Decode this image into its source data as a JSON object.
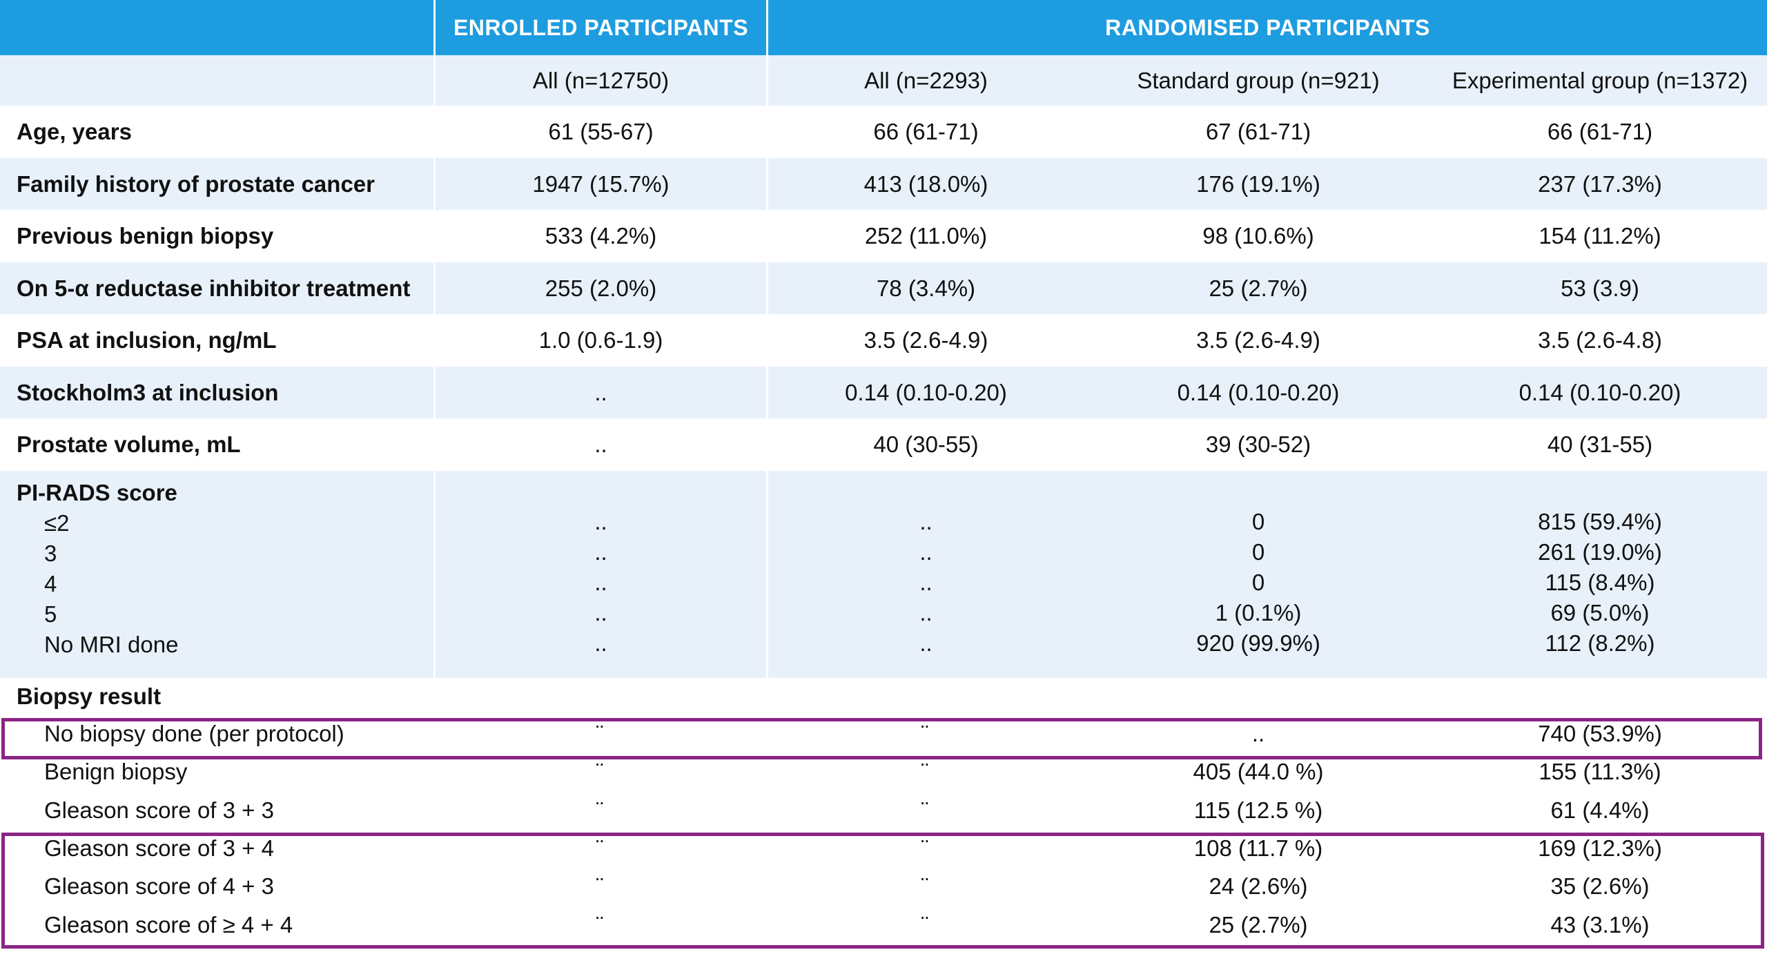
{
  "header": {
    "enrolled": "ENROLLED PARTICIPANTS",
    "randomised": "RANDOMISED PARTICIPANTS"
  },
  "subheader": [
    "",
    "All (n=12750)",
    "All (n=2293)",
    "Standard group (n=921)",
    "Experimental group (n=1372)"
  ],
  "rows": [
    {
      "label": "Age, years",
      "values": [
        "61 (55-67)",
        "66 (61-71)",
        "67 (61-71)",
        "66 (61-71)"
      ]
    },
    {
      "label": "Family history of prostate cancer",
      "values": [
        "1947 (15.7%)",
        "413 (18.0%)",
        "176 (19.1%)",
        "237 (17.3%)"
      ]
    },
    {
      "label": "Previous benign biopsy",
      "values": [
        "533 (4.2%)",
        "252 (11.0%)",
        "98 (10.6%)",
        "154 (11.2%)"
      ]
    },
    {
      "label": "On 5-α reductase inhibitor treatment",
      "values": [
        "255 (2.0%)",
        "78 (3.4%)",
        "25 (2.7%)",
        "53 (3.9)"
      ]
    },
    {
      "label": "PSA at inclusion, ng/mL",
      "values": [
        "1.0 (0.6-1.9)",
        "3.5 (2.6-4.9)",
        "3.5 (2.6-4.9)",
        "3.5 (2.6-4.8)"
      ]
    },
    {
      "label": "Stockholm3 at inclusion",
      "values": [
        "..",
        "0.14 (0.10-0.20)",
        "0.14 (0.10-0.20)",
        "0.14 (0.10-0.20)"
      ]
    },
    {
      "label": "Prostate volume, mL",
      "values": [
        "..",
        "40 (30-55)",
        "39 (30-52)",
        "40 (31-55)"
      ]
    }
  ],
  "pirads": {
    "label": "PI-RADS score",
    "items": [
      "≤2",
      "3",
      "4",
      "5",
      "No MRI done"
    ],
    "col1": [
      "..",
      "..",
      "..",
      "..",
      ".."
    ],
    "col2": [
      "..",
      "..",
      "..",
      "..",
      ".."
    ],
    "col3": [
      "0",
      "0",
      "0",
      "1 (0.1%)",
      "920 (99.9%)"
    ],
    "col4": [
      "815 (59.4%)",
      "261 (19.0%)",
      "115 (8.4%)",
      "69 (5.0%)",
      "112 (8.2%)"
    ]
  },
  "biopsy": {
    "label": "Biopsy result",
    "rows": [
      {
        "label": "No biopsy done (per protocol)",
        "values": [
          "¨",
          "¨",
          "..",
          "740 (53.9%)"
        ]
      },
      {
        "label": "Benign biopsy",
        "values": [
          "¨",
          "¨",
          "405 (44.0 %)",
          "155 (11.3%)"
        ]
      },
      {
        "label": "Gleason score of 3 + 3",
        "values": [
          "¨",
          "¨",
          "115 (12.5 %)",
          "61 (4.4%)"
        ]
      },
      {
        "label": "Gleason score of 3 + 4",
        "values": [
          "¨",
          "¨",
          "108 (11.7 %)",
          "169 (12.3%)"
        ]
      },
      {
        "label": "Gleason score of 4 + 3",
        "values": [
          "¨",
          "¨",
          "24 (2.6%)",
          "35 (2.6%)"
        ]
      },
      {
        "label": "Gleason score of ≥ 4 + 4",
        "values": [
          "¨",
          "¨",
          "25 (2.7%)",
          "43 (3.1%)"
        ]
      }
    ]
  },
  "colors": {
    "header": "#1e9ce0",
    "tint": "#e8f1fa",
    "highlight": "#8b2585"
  }
}
